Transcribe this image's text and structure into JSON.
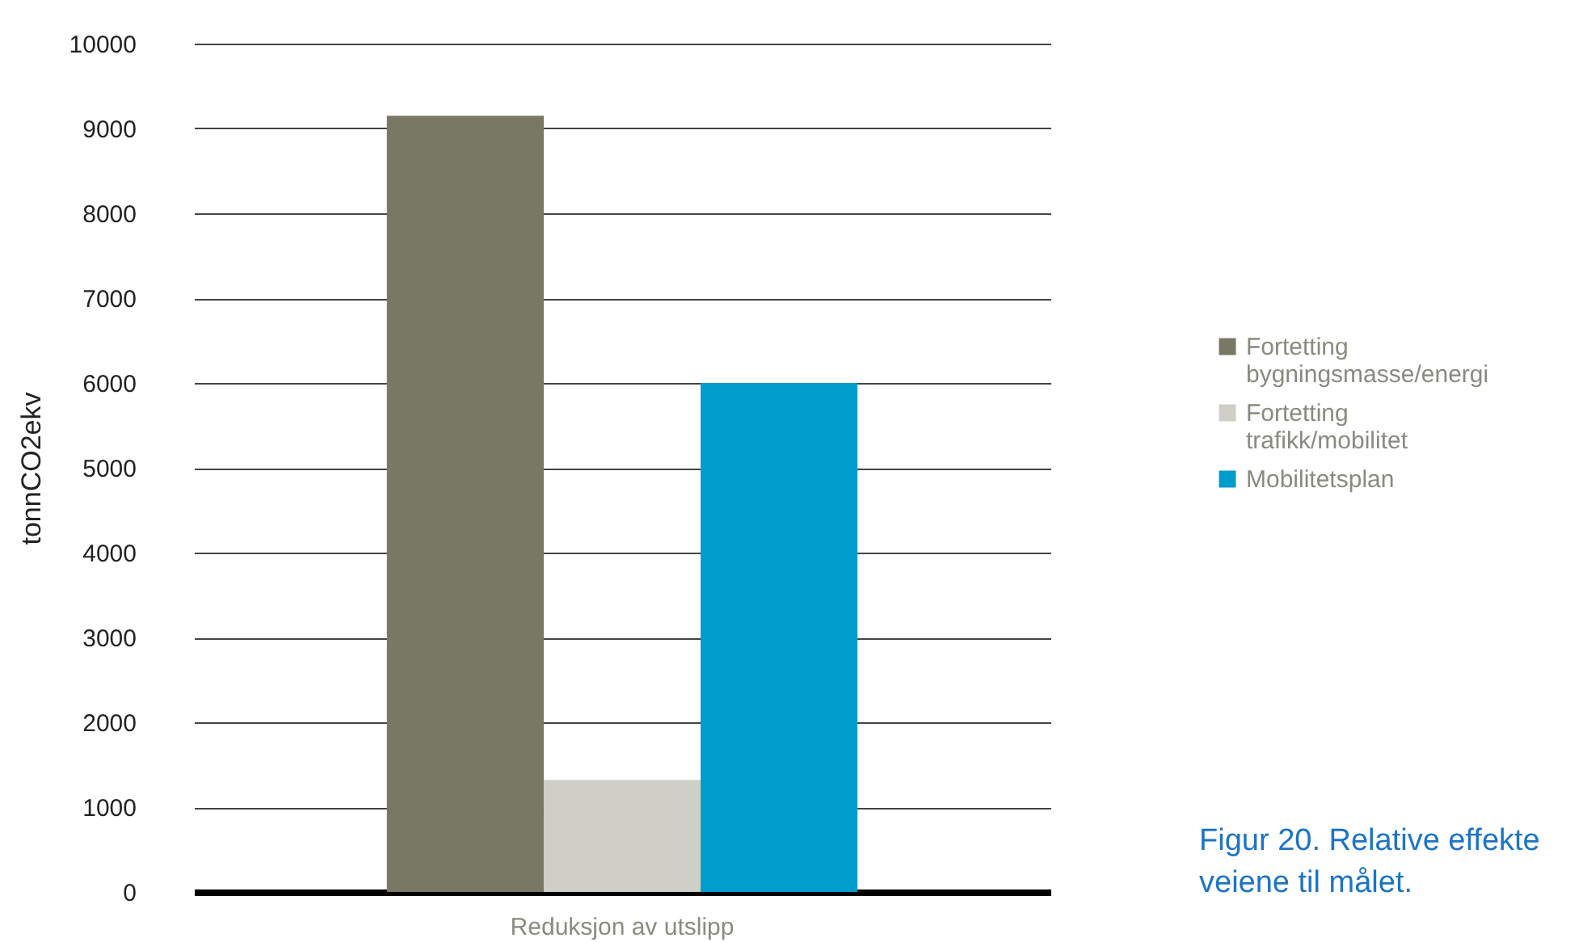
{
  "chart_data": {
    "type": "bar",
    "categories": [
      "Reduksjon av utslipp"
    ],
    "ylabel": "tonnCO2ekv",
    "series": [
      {
        "name": "Fortetting bygningsmasse/energi",
        "color": "#797865",
        "values": [
          9150
        ]
      },
      {
        "name": "Fortetting trafikk/mobilitet",
        "color": "#cfcfc7",
        "values": [
          1320
        ]
      },
      {
        "name": "Mobilitetsplan",
        "color": "#009ccb",
        "values": [
          6000
        ]
      }
    ],
    "ylim": [
      0,
      10000
    ],
    "yticks": [
      0,
      1000,
      2000,
      3000,
      4000,
      5000,
      6000,
      7000,
      8000,
      9000,
      10000
    ],
    "grid": "y",
    "legend": "right",
    "annotations": [
      "Figur 20. Relative effekte veiene til målet."
    ]
  }
}
